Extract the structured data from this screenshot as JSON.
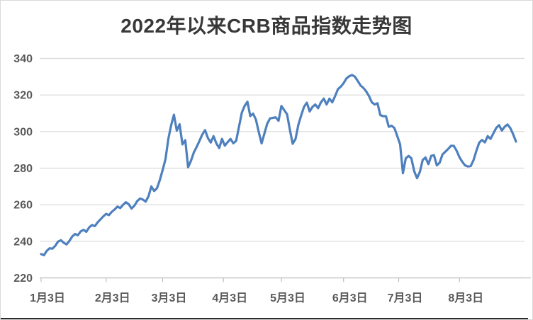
{
  "chart": {
    "title": "2022年以来CRB商品指数走势图"
  },
  "colors": {
    "line": "#4e80be",
    "grid": "#d9d9d9",
    "axis": "#bfbfbf",
    "axis_text": "#595959",
    "title_text": "#383838",
    "bottom_bar": "#2b2b2b",
    "background": "#ffffff"
  },
  "chart_data": {
    "type": "line",
    "title": "2022年以来CRB商品指数走势图",
    "xlabel": "",
    "ylabel": "",
    "ylim": [
      220,
      340
    ],
    "y_ticks": [
      340,
      320,
      300,
      280,
      260,
      240,
      220
    ],
    "grid": "horizontal",
    "legend": "none",
    "x_ticks": {
      "labels": [
        "1月3日",
        "2月3日",
        "3月3日",
        "4月3日",
        "5月3日",
        "6月3日",
        "7月3日",
        "8月3日"
      ],
      "indices": [
        0,
        23,
        43,
        64.5,
        85,
        107,
        126.5,
        148
      ]
    },
    "series": [
      {
        "name": "CRB商品指数",
        "dates": [
          "1/3",
          "1/4",
          "1/5",
          "1/6",
          "1/7",
          "1/10",
          "1/11",
          "1/12",
          "1/13",
          "1/14",
          "1/17",
          "1/18",
          "1/19",
          "1/20",
          "1/21",
          "1/24",
          "1/25",
          "1/26",
          "1/27",
          "1/28",
          "1/31",
          "2/1",
          "2/2",
          "2/3",
          "2/4",
          "2/7",
          "2/8",
          "2/9",
          "2/10",
          "2/11",
          "2/14",
          "2/15",
          "2/16",
          "2/17",
          "2/18",
          "2/21",
          "2/22",
          "2/23",
          "2/24",
          "2/25",
          "2/28",
          "3/1",
          "3/2",
          "3/3",
          "3/4",
          "3/7",
          "3/8",
          "3/9",
          "3/10",
          "3/11",
          "3/14",
          "3/15",
          "3/16",
          "3/17",
          "3/18",
          "3/21",
          "3/22",
          "3/23",
          "3/24",
          "3/25",
          "3/28",
          "3/29",
          "3/30",
          "3/31",
          "4/1",
          "4/4",
          "4/5",
          "4/6",
          "4/7",
          "4/8",
          "4/11",
          "4/12",
          "4/13",
          "4/14",
          "4/18",
          "4/19",
          "4/20",
          "4/21",
          "4/22",
          "4/25",
          "4/26",
          "4/27",
          "4/28",
          "4/29",
          "5/2",
          "5/3",
          "5/4",
          "5/5",
          "5/6",
          "5/9",
          "5/10",
          "5/11",
          "5/12",
          "5/13",
          "5/16",
          "5/17",
          "5/18",
          "5/19",
          "5/20",
          "5/23",
          "5/24",
          "5/25",
          "5/26",
          "5/27",
          "5/31",
          "6/1",
          "6/2",
          "6/3",
          "6/6",
          "6/7",
          "6/8",
          "6/9",
          "6/10",
          "6/13",
          "6/14",
          "6/15",
          "6/16",
          "6/17",
          "6/21",
          "6/22",
          "6/23",
          "6/24",
          "6/27",
          "6/28",
          "6/29",
          "6/30",
          "7/1",
          "7/5",
          "7/6",
          "7/7",
          "7/8",
          "7/11",
          "7/12",
          "7/13",
          "7/14",
          "7/15",
          "7/18",
          "7/19",
          "7/20",
          "7/21",
          "7/22",
          "7/25",
          "7/26",
          "7/27",
          "7/28",
          "7/29",
          "8/1",
          "8/2",
          "8/3",
          "8/4",
          "8/5",
          "8/8",
          "8/9",
          "8/10",
          "8/11",
          "8/12",
          "8/15",
          "8/16",
          "8/17",
          "8/18",
          "8/19",
          "8/22",
          "8/23",
          "8/24",
          "8/25",
          "8/26",
          "8/29",
          "8/30",
          "8/31"
        ],
        "values": [
          233.0,
          232.4,
          234.8,
          236.2,
          236.0,
          237.5,
          239.8,
          240.6,
          239.2,
          238.3,
          240.2,
          242.6,
          244.0,
          243.3,
          245.4,
          246.3,
          245.2,
          247.6,
          248.9,
          248.3,
          250.4,
          252.0,
          253.6,
          255.0,
          254.3,
          256.1,
          257.4,
          259.0,
          258.2,
          260.0,
          261.4,
          260.3,
          257.9,
          259.5,
          262.0,
          263.4,
          262.8,
          261.7,
          264.6,
          270.0,
          267.5,
          269.0,
          273.5,
          279.0,
          285.0,
          296.0,
          303.5,
          309.2,
          300.5,
          304.0,
          293.0,
          295.3,
          280.5,
          284.0,
          288.5,
          291.5,
          294.8,
          298.3,
          300.8,
          296.5,
          294.0,
          297.5,
          293.5,
          291.0,
          296.0,
          292.3,
          294.2,
          296.0,
          293.6,
          295.0,
          302.7,
          310.4,
          314.0,
          316.3,
          308.5,
          309.8,
          306.5,
          299.7,
          293.5,
          299.0,
          304.3,
          307.2,
          307.5,
          307.8,
          305.9,
          314.0,
          311.7,
          309.5,
          301.0,
          293.3,
          295.9,
          303.6,
          308.8,
          313.5,
          315.8,
          311.0,
          313.5,
          314.8,
          312.8,
          316.0,
          318.0,
          314.8,
          318.0,
          316.0,
          319.4,
          323.2,
          324.5,
          326.4,
          329.0,
          330.3,
          330.9,
          330.0,
          327.7,
          325.2,
          323.9,
          322.0,
          319.4,
          316.0,
          314.8,
          315.5,
          309.0,
          308.4,
          308.4,
          302.6,
          303.2,
          301.9,
          297.5,
          293.0,
          277.2,
          285.4,
          286.7,
          285.4,
          278.3,
          274.5,
          278.0,
          284.5,
          285.8,
          282.2,
          286.7,
          287.1,
          281.5,
          283.0,
          287.5,
          289.0,
          290.5,
          292.2,
          292.2,
          289.5,
          286.0,
          283.5,
          281.5,
          280.9,
          281.2,
          284.5,
          289.6,
          294.0,
          295.4,
          294.1,
          297.5,
          296.0,
          299.0,
          302.0,
          303.5,
          300.5,
          302.6,
          303.9,
          301.9,
          298.5,
          294.5
        ]
      }
    ]
  }
}
